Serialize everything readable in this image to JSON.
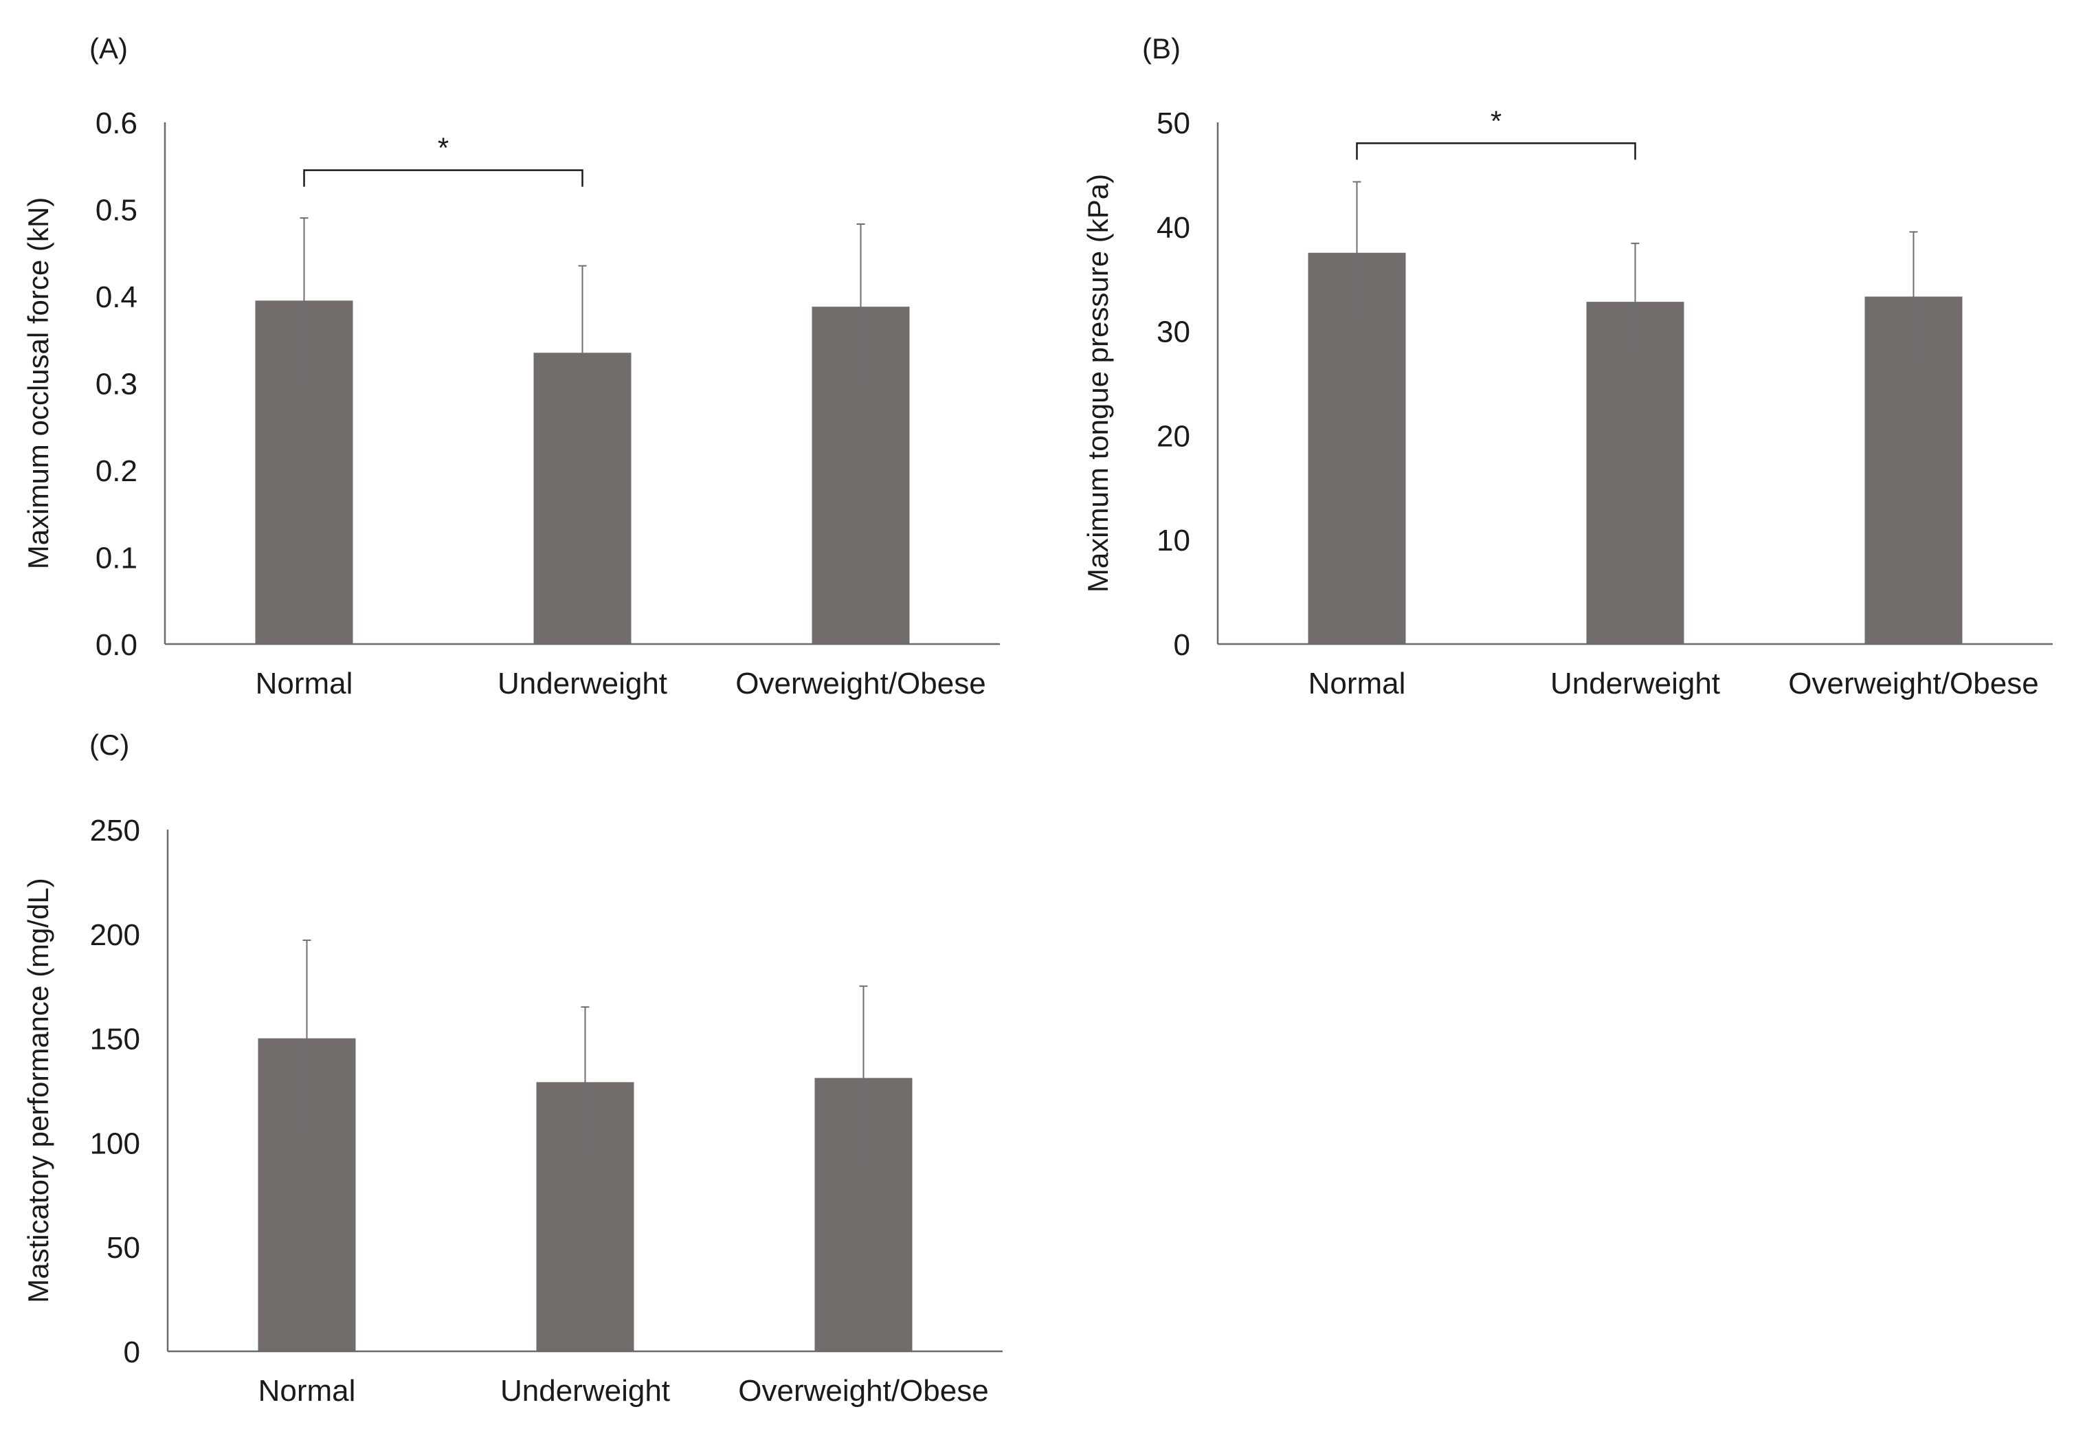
{
  "colors": {
    "bar": "#726d6b",
    "axis": "#6a6a6a",
    "error_bar": "#6f6f6f",
    "text": "#1a1a1a"
  },
  "chart_data": [
    {
      "type": "bar",
      "panel_label": "(A)",
      "title": "",
      "ylabel": "Maximum occlusal force (kN)",
      "xlabel": "",
      "categories": [
        "Normal",
        "Underweight",
        "Overweight/Obese"
      ],
      "values": [
        0.395,
        0.335,
        0.388
      ],
      "errors": [
        0.095,
        0.1,
        0.095
      ],
      "ylim": [
        0,
        0.6
      ],
      "yticks": [
        "0.0",
        "0.1",
        "0.2",
        "0.3",
        "0.4",
        "0.5",
        "0.6"
      ],
      "significance": [
        {
          "from": 0,
          "to": 1,
          "label": "*",
          "level": 0.545
        }
      ]
    },
    {
      "type": "bar",
      "panel_label": "(B)",
      "title": "",
      "ylabel": "Maximum tongue pressure (kPa)",
      "xlabel": "",
      "categories": [
        "Normal",
        "Underweight",
        "Overweight/Obese"
      ],
      "values": [
        37.5,
        32.8,
        33.3
      ],
      "errors": [
        6.8,
        5.6,
        6.2
      ],
      "ylim": [
        0,
        50
      ],
      "yticks": [
        "0",
        "10",
        "20",
        "30",
        "40",
        "50"
      ],
      "significance": [
        {
          "from": 0,
          "to": 1,
          "label": "*",
          "level": 48.0
        }
      ]
    },
    {
      "type": "bar",
      "panel_label": "(C)",
      "title": "",
      "ylabel": "Masticatory performance (mg/dL)",
      "xlabel": "",
      "categories": [
        "Normal",
        "Underweight",
        "Overweight/Obese"
      ],
      "values": [
        150,
        129,
        131
      ],
      "errors": [
        47,
        36,
        44
      ],
      "ylim": [
        0,
        250
      ],
      "yticks": [
        "0",
        "50",
        "100",
        "150",
        "200",
        "250"
      ],
      "significance": []
    }
  ]
}
